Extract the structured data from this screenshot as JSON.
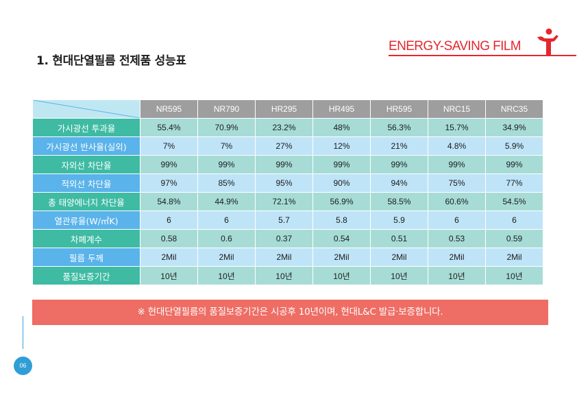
{
  "title": "1. 현대단열필름 전제품 성능표",
  "brand": {
    "text": "ENERGY-SAVING FILM",
    "color": "#e5262d"
  },
  "table": {
    "columns": [
      "NR595",
      "NR790",
      "HR295",
      "HR495",
      "HR595",
      "NRC15",
      "NRC35"
    ],
    "rows": [
      {
        "label": "가시광선 투과율",
        "values": [
          "55.4%",
          "70.9%",
          "23.2%",
          "48%",
          "56.3%",
          "15.7%",
          "34.9%"
        ]
      },
      {
        "label": "가시광선 반사율(실외)",
        "values": [
          "7%",
          "7%",
          "27%",
          "12%",
          "21%",
          "4.8%",
          "5.9%"
        ]
      },
      {
        "label": "자외선 차단율",
        "values": [
          "99%",
          "99%",
          "99%",
          "99%",
          "99%",
          "99%",
          "99%"
        ]
      },
      {
        "label": "적외선 차단율",
        "values": [
          "97%",
          "85%",
          "95%",
          "90%",
          "94%",
          "75%",
          "77%"
        ]
      },
      {
        "label": "총 태양에너지 차단율",
        "values": [
          "54.8%",
          "44.9%",
          "72.1%",
          "56.9%",
          "58.5%",
          "60.6%",
          "54.5%"
        ]
      },
      {
        "label": "열관류율(W/㎡K)",
        "values": [
          "6",
          "6",
          "5.7",
          "5.8",
          "5.9",
          "6",
          "6"
        ]
      },
      {
        "label": "차폐계수",
        "values": [
          "0.58",
          "0.6",
          "0.37",
          "0.54",
          "0.51",
          "0.53",
          "0.59"
        ]
      },
      {
        "label": "필름 두께",
        "values": [
          "2Mil",
          "2Mil",
          "2Mil",
          "2Mil",
          "2Mil",
          "2Mil",
          "2Mil"
        ]
      },
      {
        "label": "품질보증기간",
        "values": [
          "10년",
          "10년",
          "10년",
          "10년",
          "10년",
          "10년",
          "10년"
        ]
      }
    ]
  },
  "note": "※ 현대단열필름의 품질보증기간은 시공후 10년이며, 현대L&C 발급·보증합니다.",
  "page_number": "06",
  "colors": {
    "teal": "#3fbba3",
    "blue": "#5ab3ea",
    "header_gray": "#9e9e9e",
    "note_red": "#ee6d64"
  },
  "icons": {
    "brand": "person-arms-raised-icon"
  }
}
